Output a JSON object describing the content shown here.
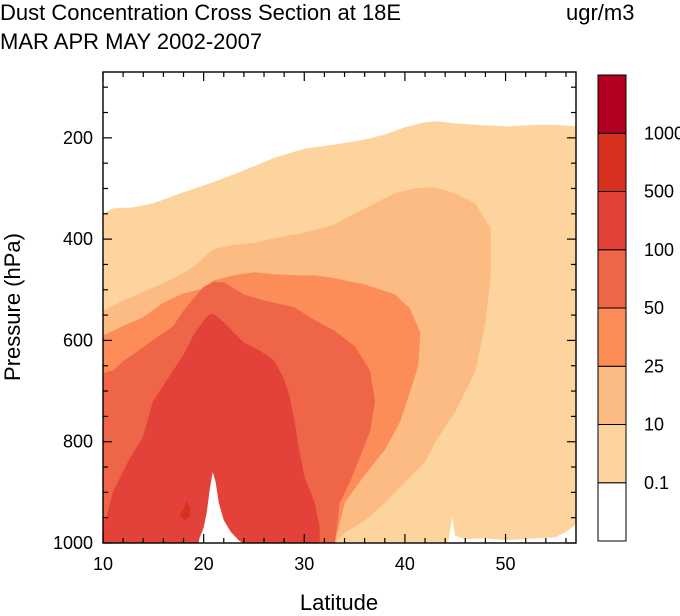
{
  "header": {
    "title_line1": "Dust Concentration Cross Section at 18E",
    "title_line2": "MAR APR MAY 2002-2007",
    "units": "ugr/m3"
  },
  "chart_data": {
    "type": "contour",
    "title": "Dust Concentration Cross Section at 18E",
    "subtitle": "MAR APR MAY 2002-2007",
    "units": "ugr/m3",
    "xlabel": "Latitude",
    "ylabel": "Pressure (hPa)",
    "xlim": [
      10,
      57
    ],
    "ylim": [
      1000,
      70
    ],
    "x_ticks": [
      10,
      20,
      30,
      40,
      50
    ],
    "y_ticks": [
      200,
      400,
      600,
      800,
      1000
    ],
    "legend_position": "right",
    "colorbar_labels": [
      "0.1",
      "10",
      "25",
      "50",
      "100",
      "500",
      "1000"
    ],
    "levels": [
      0.1,
      10,
      25,
      50,
      100,
      500,
      1000
    ],
    "colors": [
      "#ffffff",
      "#fdd49e",
      "#fdbb84",
      "#fc8d59",
      "#ef6548",
      "#e3423a",
      "#d7301f",
      "#b30022"
    ],
    "contours": [
      {
        "level": 0.1,
        "color": "#fdd49e",
        "boundary": [
          [
            10,
            1000
          ],
          [
            10,
            350
          ],
          [
            11,
            340
          ],
          [
            13,
            338
          ],
          [
            15,
            330
          ],
          [
            18,
            308
          ],
          [
            21,
            288
          ],
          [
            24,
            265
          ],
          [
            27,
            240
          ],
          [
            30,
            222
          ],
          [
            33,
            214
          ],
          [
            36,
            204
          ],
          [
            38,
            194
          ],
          [
            40,
            180
          ],
          [
            42,
            170
          ],
          [
            43,
            168
          ],
          [
            45,
            172
          ],
          [
            48,
            176
          ],
          [
            50,
            178
          ],
          [
            53,
            175
          ],
          [
            55,
            175
          ],
          [
            57,
            178
          ],
          [
            57,
            962
          ],
          [
            56.5,
            970
          ],
          [
            56,
            978
          ],
          [
            55.5,
            982
          ],
          [
            55,
            988
          ],
          [
            50,
            994
          ],
          [
            48,
            990
          ],
          [
            46,
            992
          ],
          [
            45,
            985
          ],
          [
            44.7,
            945
          ],
          [
            44.3,
            995
          ],
          [
            44,
            1000
          ]
        ]
      },
      {
        "level": 10,
        "color": "#fdbb84",
        "boundary": [
          [
            10,
            1000
          ],
          [
            10,
            542
          ],
          [
            11,
            532
          ],
          [
            12,
            522
          ],
          [
            14,
            505
          ],
          [
            17,
            478
          ],
          [
            19,
            455
          ],
          [
            21,
            420
          ],
          [
            23,
            412
          ],
          [
            25,
            408
          ],
          [
            28,
            395
          ],
          [
            30,
            388
          ],
          [
            33,
            372
          ],
          [
            35,
            350
          ],
          [
            37,
            330
          ],
          [
            39,
            310
          ],
          [
            41,
            300
          ],
          [
            43,
            298
          ],
          [
            45,
            310
          ],
          [
            47,
            330
          ],
          [
            48.5,
            380
          ],
          [
            48.5,
            470
          ],
          [
            48,
            560
          ],
          [
            47,
            660
          ],
          [
            45,
            740
          ],
          [
            43,
            800
          ],
          [
            42,
            840
          ],
          [
            40,
            880
          ],
          [
            38,
            920
          ],
          [
            36,
            955
          ],
          [
            34,
            980
          ],
          [
            33,
            1000
          ]
        ]
      },
      {
        "level": 25,
        "color": "#fc8d59",
        "boundary": [
          [
            10,
            1000
          ],
          [
            10,
            590
          ],
          [
            11,
            582
          ],
          [
            12,
            572
          ],
          [
            14,
            555
          ],
          [
            16,
            526
          ],
          [
            18,
            508
          ],
          [
            20,
            498
          ],
          [
            21,
            482
          ],
          [
            23,
            472
          ],
          [
            25,
            466
          ],
          [
            27,
            470
          ],
          [
            29,
            472
          ],
          [
            31,
            472
          ],
          [
            33,
            478
          ],
          [
            36,
            490
          ],
          [
            39,
            510
          ],
          [
            40.5,
            538
          ],
          [
            41.5,
            585
          ],
          [
            41.3,
            650
          ],
          [
            40.5,
            700
          ],
          [
            39.5,
            760
          ],
          [
            38,
            815
          ],
          [
            36,
            865
          ],
          [
            34,
            920
          ],
          [
            33,
            1000
          ]
        ]
      },
      {
        "level": 50,
        "color": "#ef6548",
        "boundary": [
          [
            10,
            1000
          ],
          [
            10,
            665
          ],
          [
            11,
            660
          ],
          [
            12,
            642
          ],
          [
            13,
            628
          ],
          [
            15,
            600
          ],
          [
            17,
            572
          ],
          [
            18,
            542
          ],
          [
            19,
            518
          ],
          [
            20,
            495
          ],
          [
            21,
            485
          ],
          [
            22,
            486
          ],
          [
            24,
            510
          ],
          [
            26,
            522
          ],
          [
            29,
            535
          ],
          [
            31,
            560
          ],
          [
            33,
            582
          ],
          [
            35,
            612
          ],
          [
            36.5,
            660
          ],
          [
            37,
            720
          ],
          [
            36.5,
            780
          ],
          [
            35.5,
            830
          ],
          [
            34.5,
            880
          ],
          [
            33.5,
            920
          ],
          [
            33,
            1000
          ]
        ]
      },
      {
        "level": 100,
        "color": "#e3423a",
        "boundary": [
          [
            10,
            1000
          ],
          [
            10,
            965
          ],
          [
            10.5,
            940
          ],
          [
            11,
            900
          ],
          [
            12.5,
            840
          ],
          [
            14,
            790
          ],
          [
            15,
            720
          ],
          [
            16,
            690
          ],
          [
            17,
            660
          ],
          [
            18,
            630
          ],
          [
            19,
            590
          ],
          [
            20,
            562
          ],
          [
            20.5,
            550
          ],
          [
            21,
            548
          ],
          [
            22,
            565
          ],
          [
            23,
            585
          ],
          [
            24,
            605
          ],
          [
            25.5,
            620
          ],
          [
            27,
            640
          ],
          [
            28,
            678
          ],
          [
            28.5,
            710
          ],
          [
            29,
            760
          ],
          [
            29.5,
            820
          ],
          [
            30,
            870
          ],
          [
            31,
            920
          ],
          [
            31.5,
            970
          ],
          [
            31.5,
            1000
          ]
        ]
      }
    ],
    "lowest_contour_overlay": {
      "level": 500,
      "color": "#d7301f",
      "boundary": [
        [
          17.6,
          945
        ],
        [
          18.0,
          932
        ],
        [
          18.3,
          918
        ],
        [
          18.7,
          930
        ],
        [
          18.6,
          948
        ],
        [
          18.1,
          955
        ]
      ]
    },
    "clear_region_below": {
      "color": "#ffffff",
      "boundary": [
        [
          19.5,
          1000
        ],
        [
          19.6,
          990
        ],
        [
          20.0,
          970
        ],
        [
          20.3,
          940
        ],
        [
          20.6,
          895
        ],
        [
          20.9,
          860
        ],
        [
          21.2,
          880
        ],
        [
          21.5,
          920
        ],
        [
          22.0,
          955
        ],
        [
          22.7,
          978
        ],
        [
          23.5,
          995
        ],
        [
          23.9,
          1000
        ]
      ]
    }
  }
}
